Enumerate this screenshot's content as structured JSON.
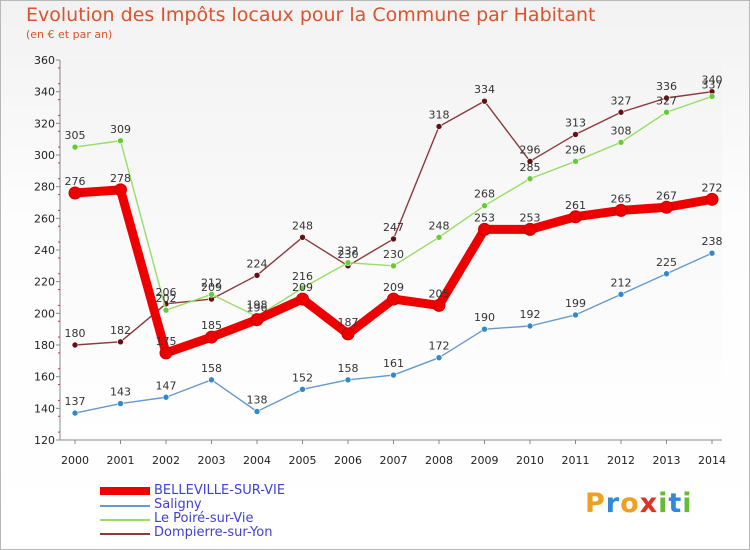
{
  "chart_data": {
    "type": "line",
    "title": "Evolution des Impôts locaux pour la Commune par Habitant",
    "subtitle": "(en € et par an)",
    "xlabel": "",
    "ylabel": "",
    "x": [
      2000,
      2001,
      2002,
      2003,
      2004,
      2005,
      2006,
      2007,
      2008,
      2009,
      2010,
      2011,
      2012,
      2013,
      2014
    ],
    "ylim": [
      120,
      360
    ],
    "yticks": [
      120,
      140,
      160,
      180,
      200,
      220,
      240,
      260,
      280,
      300,
      320,
      340,
      360
    ],
    "grid": false,
    "legend_position": "bottom-left",
    "series": [
      {
        "name": "BELLEVILLE-SUR-VIE",
        "color": "#ee0000",
        "marker": "#ee0000",
        "values": [
          276,
          278,
          175,
          185,
          196,
          209,
          187,
          209,
          205,
          253,
          253,
          261,
          265,
          267,
          272
        ]
      },
      {
        "name": "Saligny",
        "color": "#6699cc",
        "marker": "#3388cc",
        "values": [
          137,
          143,
          147,
          158,
          138,
          152,
          158,
          161,
          172,
          190,
          192,
          199,
          212,
          225,
          238
        ]
      },
      {
        "name": "Le Poiré-sur-Vie",
        "color": "#99dd66",
        "marker": "#66cc33",
        "values": [
          305,
          309,
          202,
          212,
          198,
          216,
          232,
          230,
          248,
          268,
          285,
          296,
          308,
          327,
          337
        ]
      },
      {
        "name": "Dompierre-sur-Yon",
        "color": "#8b3a3a",
        "marker": "#661111",
        "values": [
          180,
          182,
          206,
          209,
          224,
          248,
          230,
          247,
          318,
          334,
          296,
          313,
          327,
          336,
          340
        ]
      }
    ]
  },
  "logo": {
    "text": "Proxiti",
    "letters": [
      {
        "ch": "P",
        "color": "#f0a020"
      },
      {
        "ch": "r",
        "color": "#3388dd"
      },
      {
        "ch": "o",
        "color": "#f0a020"
      },
      {
        "ch": "x",
        "color": "#dd3322"
      },
      {
        "ch": "i",
        "color": "#66bb33"
      },
      {
        "ch": "t",
        "color": "#3388dd"
      },
      {
        "ch": "i",
        "color": "#66bb33"
      }
    ]
  }
}
